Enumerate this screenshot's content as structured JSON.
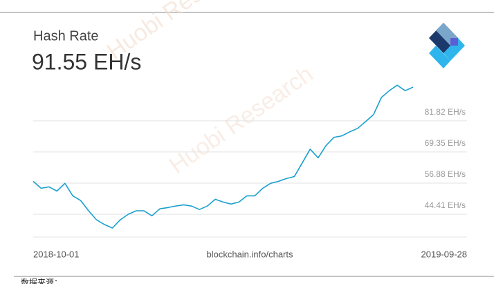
{
  "chart_data": {
    "type": "line",
    "title": "Hash Rate",
    "subtitle": "91.55 EH/s",
    "source": "blockchain.info/charts",
    "note": "数据来源：",
    "watermark": "Huobi Research",
    "categories": [
      "2018-10-01",
      null,
      null,
      null,
      null,
      null,
      null,
      null,
      null,
      null,
      null,
      null,
      null,
      null,
      null,
      null,
      null,
      null,
      null,
      null,
      null,
      null,
      null,
      null,
      null,
      null,
      null,
      null,
      null,
      null,
      null,
      null,
      null,
      null,
      null,
      null,
      null,
      null,
      null,
      null,
      null,
      null,
      null,
      null,
      null,
      null,
      null,
      null,
      "2019-09-28"
    ],
    "series": [
      {
        "name": "Hash Rate",
        "color": "#1a9fce",
        "values": [
          57.6,
          54.8,
          55.4,
          53.7,
          56.8,
          51.8,
          49.9,
          45.8,
          42.2,
          40.3,
          38.9,
          42.2,
          44.4,
          45.8,
          45.8,
          43.8,
          46.6,
          47.1,
          47.7,
          48.2,
          47.7,
          46.3,
          47.7,
          50.4,
          49.3,
          48.5,
          49.3,
          51.8,
          51.8,
          54.8,
          56.8,
          57.6,
          58.7,
          59.5,
          65.0,
          70.5,
          67.0,
          71.9,
          75.2,
          75.8,
          77.4,
          78.8,
          81.5,
          84.3,
          91.2,
          93.9,
          96.1,
          93.9,
          95.3
        ]
      }
    ],
    "ylim": [
      35.3,
      97
    ],
    "yticks": [
      {
        "value": 44.41,
        "label": "44.41 EH/s"
      },
      {
        "value": 56.88,
        "label": "56.88 EH/s"
      },
      {
        "value": 69.35,
        "label": "69.35 EH/s"
      },
      {
        "value": 81.82,
        "label": "81.82 EH/s"
      }
    ],
    "grid": true
  }
}
